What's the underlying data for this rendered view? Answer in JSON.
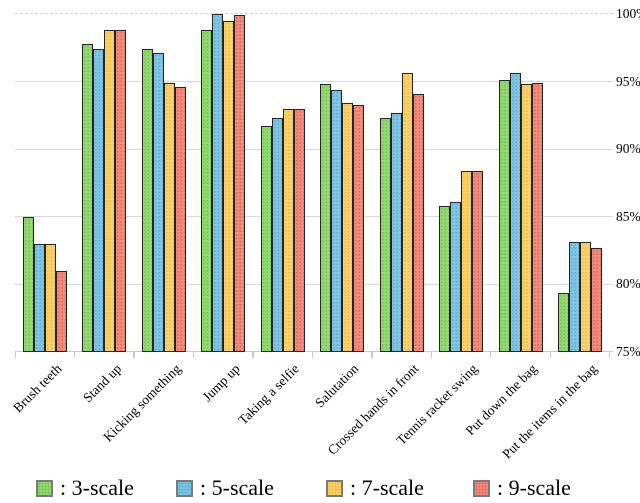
{
  "chart_data": {
    "type": "bar",
    "title": "",
    "xlabel": "",
    "ylabel": "",
    "categories": [
      "Brush teeth",
      "Stand up",
      "Kicking something",
      "Jump up",
      "Taking a selfie",
      "Salutation",
      "Crossed hands in front",
      "Tennis racket swing",
      "Put down the bag",
      "Put the items in the bag"
    ],
    "series": [
      {
        "name": "3-scale",
        "legend_label": ": 3-scale",
        "color": "#93d96f",
        "dot_color": "#72c253",
        "values": [
          85.0,
          97.8,
          97.4,
          98.8,
          91.7,
          94.8,
          92.3,
          85.8,
          95.1,
          79.4
        ]
      },
      {
        "name": "5-scale",
        "legend_label": ": 5-scale",
        "color": "#82c5e2",
        "dot_color": "#5dacd1",
        "values": [
          83.0,
          97.4,
          97.1,
          100.0,
          92.3,
          94.4,
          92.7,
          86.1,
          95.6,
          83.1
        ]
      },
      {
        "name": "7-scale",
        "legend_label": ": 7-scale",
        "color": "#fbd26a",
        "dot_color": "#ecb94b",
        "values": [
          83.0,
          98.8,
          94.9,
          99.5,
          93.0,
          93.4,
          95.6,
          88.4,
          94.8,
          83.1
        ]
      },
      {
        "name": "9-scale",
        "legend_label": ": 9-scale",
        "color": "#f18b7b",
        "dot_color": "#e2655a",
        "values": [
          81.0,
          98.8,
          94.6,
          99.9,
          93.0,
          93.3,
          94.1,
          88.4,
          94.9,
          82.7
        ]
      }
    ],
    "ylim": [
      75,
      100
    ],
    "ytick_step": 5,
    "ytick_labels": [
      "100%",
      "95%",
      "90%",
      "85%",
      "80%",
      "75%"
    ],
    "grid": "horizontal",
    "legend_position": "bottom"
  }
}
